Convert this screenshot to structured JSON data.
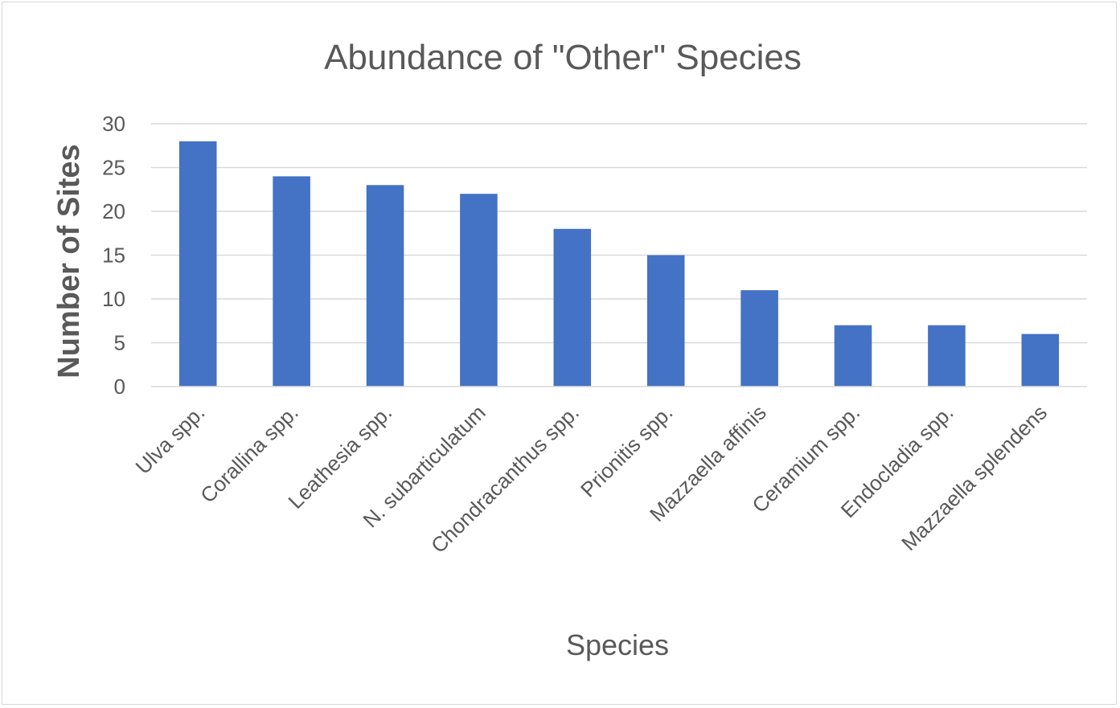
{
  "chart_data": {
    "type": "bar",
    "title": "Abundance of \"Other\" Species",
    "xlabel": "Species",
    "ylabel": "Number of Sites",
    "categories": [
      "Ulva spp.",
      "Corallina spp.",
      "Leathesia spp.",
      "N. subarticulatum",
      "Chondracanthus spp.",
      "Prionitis spp.",
      "Mazzaella affinis",
      "Ceramium spp.",
      "Endocladia spp.",
      "Mazzaella splendens"
    ],
    "values": [
      28,
      24,
      23,
      22,
      18,
      15,
      11,
      7,
      7,
      6
    ],
    "ylim": [
      0,
      30
    ],
    "yticks": [
      "0",
      "5",
      "10",
      "15",
      "20",
      "25",
      "30"
    ],
    "grid": true,
    "legend": "none",
    "colors": {
      "bar": "#4472c4",
      "grid": "#d9d9d9",
      "text": "#595959"
    }
  }
}
